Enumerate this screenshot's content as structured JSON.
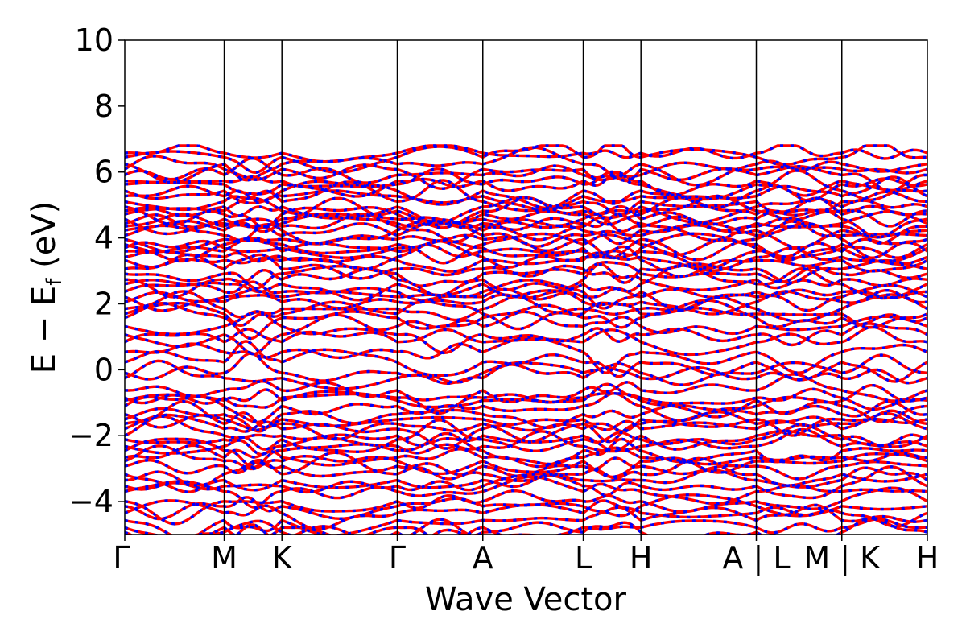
{
  "chart_data": {
    "type": "line",
    "title": "",
    "xlabel": "Wave Vector",
    "ylabel": "E − E",
    "ylabel_subscript": "f",
    "ylabel_unit": " (eV)",
    "ylim": [
      -5,
      10
    ],
    "yticks": [
      -4,
      -2,
      0,
      2,
      4,
      6,
      8,
      10
    ],
    "ytick_labels": [
      "−4",
      "−2",
      "0",
      "2",
      "4",
      "6",
      "8",
      "10"
    ],
    "kpoint_positions": [
      0,
      1.0,
      1.58,
      2.74,
      3.6,
      4.61,
      5.19,
      6.35,
      7.21,
      8.07
    ],
    "kpoint_labels": [
      "Γ",
      "M",
      "K",
      "Γ",
      "A",
      "L",
      "H",
      "A | L",
      "M | K",
      "H"
    ],
    "xlim": [
      0,
      8.07
    ],
    "grid": false,
    "legend": "none",
    "series": [
      {
        "style": "solid",
        "color": "#ff0000"
      },
      {
        "style": "dashed",
        "color": "#0000ff"
      }
    ],
    "note_bands": "dense set of energy bands between about -5 and 6.8 eV, two spin channels nearly overlapping"
  }
}
